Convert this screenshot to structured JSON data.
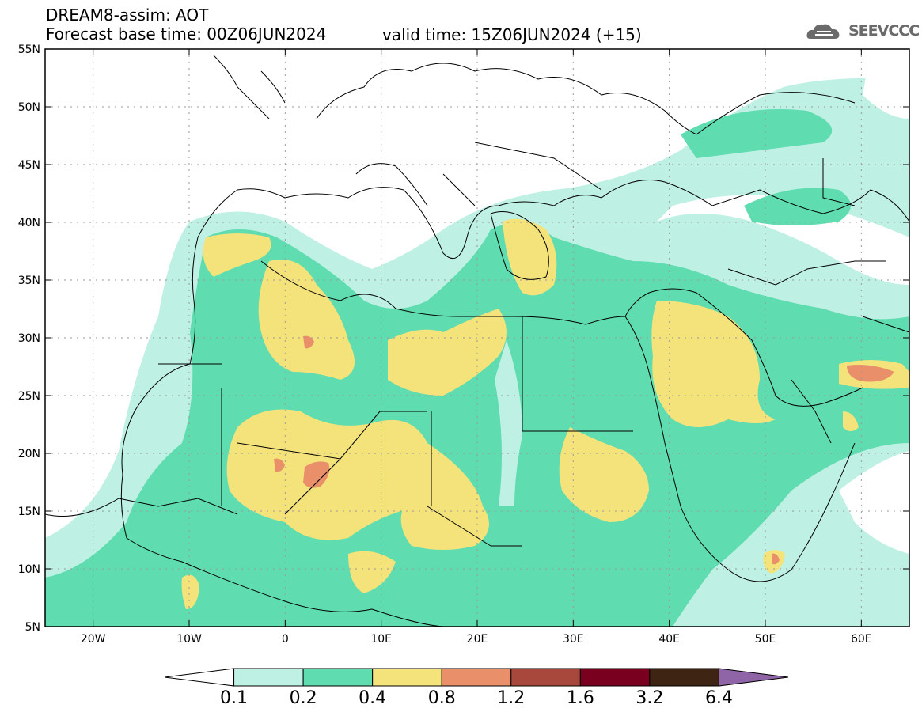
{
  "header": {
    "title_line1": "DREAM8-assim: AOT",
    "title_line2": "Forecast base time: 00Z06JUN2024",
    "valid_time": "valid time: 15Z06JUN2024 (+15)",
    "logo_text": "SEEVCCC"
  },
  "map": {
    "lon_range": [
      -25,
      65
    ],
    "lat_range": [
      5,
      55
    ],
    "lat_labels": [
      "55N",
      "50N",
      "45N",
      "40N",
      "35N",
      "30N",
      "25N",
      "20N",
      "15N",
      "10N",
      "5N"
    ],
    "lat_values": [
      55,
      50,
      45,
      40,
      35,
      30,
      25,
      20,
      15,
      10,
      5
    ],
    "lon_labels": [
      "20W",
      "10W",
      "0",
      "10E",
      "20E",
      "30E",
      "40E",
      "50E",
      "60E"
    ],
    "lon_values": [
      -20,
      -10,
      0,
      10,
      20,
      30,
      40,
      50,
      60
    ],
    "grid": "dotted"
  },
  "colorbar": {
    "levels": [
      "0.1",
      "0.2",
      "0.4",
      "0.8",
      "1.2",
      "1.6",
      "3.2",
      "6.4"
    ],
    "colors": [
      "#ffffff",
      "#bff0e4",
      "#5fdcb0",
      "#f4e37a",
      "#e9906a",
      "#a8473c",
      "#7a0020",
      "#3e2513",
      "#8f65a8"
    ]
  }
}
